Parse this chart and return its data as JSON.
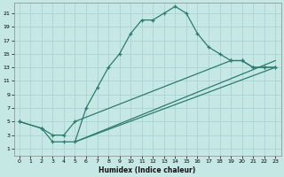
{
  "background_color": "#c5e8e5",
  "grid_color": "#aad4d0",
  "line_color": "#2d7a6e",
  "xlabel": "Humidex (Indice chaleur)",
  "xlim": [
    -0.5,
    23.5
  ],
  "ylim": [
    0,
    22.5
  ],
  "xticks": [
    0,
    1,
    2,
    3,
    4,
    5,
    6,
    7,
    8,
    9,
    10,
    11,
    12,
    13,
    14,
    15,
    16,
    17,
    18,
    19,
    20,
    21,
    22,
    23
  ],
  "yticks": [
    1,
    3,
    5,
    7,
    9,
    11,
    13,
    15,
    17,
    19,
    21
  ],
  "curve1_x": [
    0,
    2,
    3,
    4,
    5,
    6,
    7,
    8,
    9,
    10,
    11,
    12,
    13,
    14,
    15,
    16,
    17,
    18,
    19,
    20,
    21,
    22,
    23
  ],
  "curve1_y": [
    5,
    4,
    2,
    2,
    2,
    7,
    10,
    13,
    15,
    18,
    20,
    20,
    21,
    22,
    21,
    18,
    16,
    15,
    14,
    14,
    13,
    13,
    13
  ],
  "curve2_x": [
    0,
    2,
    3,
    4,
    5,
    19,
    20,
    21,
    22,
    23
  ],
  "curve2_y": [
    5,
    4,
    3,
    3,
    5,
    14,
    14,
    13,
    13,
    13
  ],
  "line3_x": [
    5,
    23
  ],
  "line3_y": [
    2,
    13
  ],
  "line4_x": [
    5,
    23
  ],
  "line4_y": [
    2,
    14
  ]
}
